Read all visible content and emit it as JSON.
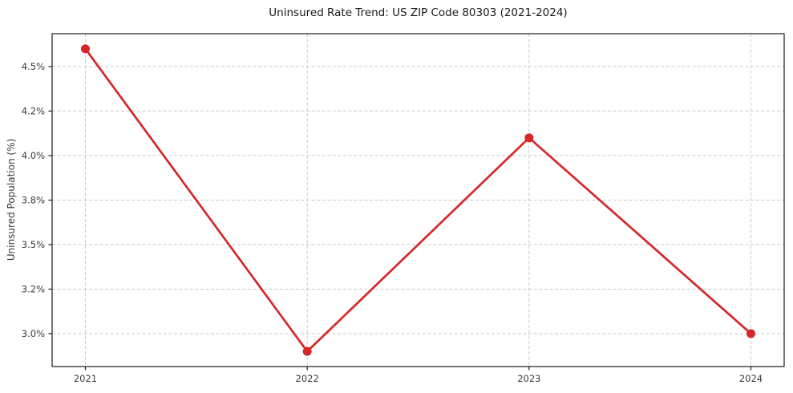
{
  "chart_data": {
    "type": "line",
    "title": "Uninsured Rate Trend: US ZIP Code 80303 (2021-2024)",
    "ylabel": "Uninsured Population (%)",
    "xlabel": "",
    "categories": [
      2021,
      2022,
      2023,
      2024
    ],
    "x_tick_labels": [
      "2021",
      "2022",
      "2023",
      "2024"
    ],
    "series": [
      {
        "name": "uninsured-rate",
        "values": [
          4.6,
          2.9,
          4.1,
          3.0
        ],
        "color": "#d62728"
      }
    ],
    "y_ticks": [
      3.0,
      3.25,
      3.5,
      3.75,
      4.0,
      4.25,
      4.5
    ],
    "y_tick_labels": [
      "3.0%",
      "3.2%",
      "3.5%",
      "3.8%",
      "4.0%",
      "4.2%",
      "4.5%"
    ],
    "xlim": [
      2020.85,
      2024.15
    ],
    "ylim": [
      2.815,
      4.685
    ],
    "grid": true,
    "legend_position": "none",
    "marker": "circle",
    "grid_color": "#c9c9c9",
    "axis_color": "#1a1a1a",
    "text_color": "#3a3a3a",
    "background": "#ffffff"
  }
}
